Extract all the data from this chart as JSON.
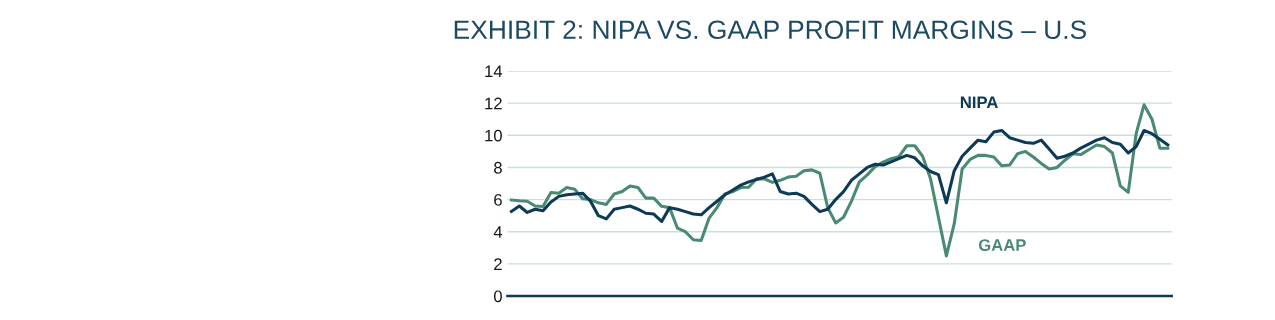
{
  "chart_data": {
    "type": "line",
    "title": "EXHIBIT 2: NIPA VS. GAAP PROFIT MARGINS – U.S",
    "categories": [
      null,
      null,
      null,
      null,
      null,
      null,
      null,
      null,
      null,
      null,
      null,
      null,
      null,
      null,
      null,
      null,
      null,
      null,
      null,
      null,
      null,
      null,
      null,
      null,
      null,
      null,
      null,
      null,
      null,
      null,
      null,
      null,
      null,
      null,
      null,
      null,
      null,
      null,
      null,
      null,
      null,
      null,
      null,
      null,
      null,
      null,
      null,
      null,
      null,
      null,
      null,
      null,
      null,
      null,
      null,
      null,
      null,
      null,
      null,
      null,
      null,
      null,
      null,
      null,
      null,
      null,
      null,
      null,
      null,
      null,
      null,
      null,
      null,
      null,
      null,
      null,
      null,
      null,
      null,
      null,
      null,
      null,
      null,
      null
    ],
    "series": [
      {
        "name": "NIPA",
        "color": "#0d3a55",
        "values": [
          5.26,
          5.6,
          5.2,
          5.4,
          5.3,
          5.85,
          6.2,
          6.3,
          6.35,
          6.4,
          5.9,
          5.0,
          4.8,
          5.4,
          5.5,
          5.6,
          5.4,
          5.15,
          5.1,
          4.64,
          5.5,
          5.4,
          5.25,
          5.1,
          5.05,
          5.5,
          5.9,
          6.3,
          6.6,
          6.9,
          7.1,
          7.25,
          7.4,
          7.6,
          6.5,
          6.35,
          6.4,
          6.2,
          5.7,
          5.25,
          5.4,
          6.0,
          6.5,
          7.2,
          7.6,
          8.0,
          8.2,
          8.15,
          8.35,
          8.55,
          8.75,
          8.6,
          8.1,
          7.75,
          7.55,
          5.8,
          7.8,
          8.7,
          9.2,
          9.7,
          9.6,
          10.2,
          10.3,
          9.85,
          9.7,
          9.55,
          9.5,
          9.7,
          9.15,
          8.57,
          8.7,
          8.9,
          9.2,
          9.45,
          9.7,
          9.85,
          9.55,
          9.45,
          8.9,
          9.3,
          10.3,
          10.1,
          9.75,
          9.4
        ]
      },
      {
        "name": "GAAP",
        "color": "#4a8a73",
        "values": [
          5.98,
          5.93,
          5.9,
          5.6,
          5.57,
          6.44,
          6.4,
          6.75,
          6.65,
          6.05,
          6.0,
          5.8,
          5.7,
          6.35,
          6.5,
          6.85,
          6.75,
          6.09,
          6.09,
          5.58,
          5.5,
          4.22,
          4.0,
          3.5,
          3.45,
          4.85,
          5.5,
          6.35,
          6.5,
          6.75,
          6.77,
          7.3,
          7.29,
          7.07,
          7.2,
          7.4,
          7.45,
          7.8,
          7.85,
          7.64,
          5.5,
          4.55,
          4.9,
          5.9,
          7.1,
          7.54,
          8.05,
          8.33,
          8.55,
          8.67,
          9.35,
          9.35,
          8.7,
          7.3,
          4.9,
          2.5,
          4.5,
          7.9,
          8.5,
          8.75,
          8.75,
          8.65,
          8.1,
          8.15,
          8.85,
          9.0,
          8.65,
          8.25,
          7.9,
          8.0,
          8.45,
          8.85,
          8.8,
          9.1,
          9.4,
          9.3,
          8.9,
          6.85,
          6.45,
          10.1,
          11.9,
          11.0,
          9.2,
          9.2
        ]
      }
    ],
    "ylim": [
      0,
      14
    ],
    "yticks": [
      0,
      2,
      4,
      6,
      8,
      10,
      12,
      14
    ],
    "grid": "y",
    "legend": false,
    "tick_labels": "y"
  }
}
